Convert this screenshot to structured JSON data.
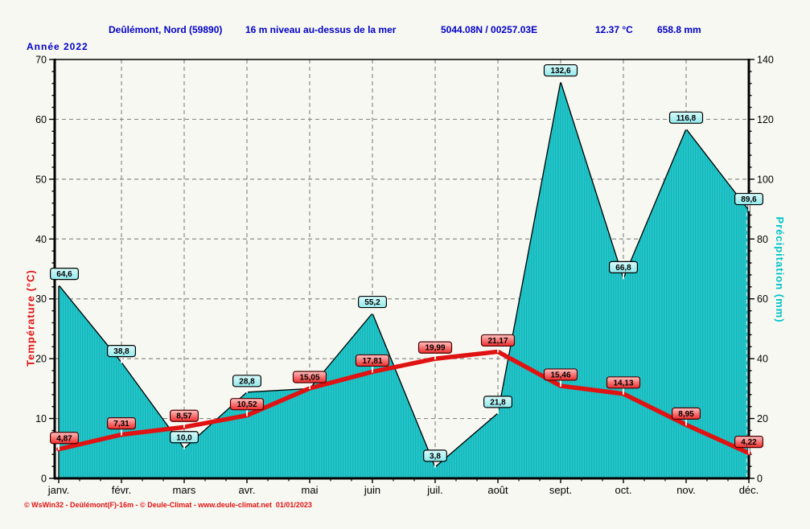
{
  "header": {
    "station": "Deûlémont, Nord (59890)",
    "elevation": "16 m niveau au-dessus de la mer",
    "coordinates": "5044.08N / 00257.03E",
    "mean_temperature": "12.37 °C",
    "total_precipitation": "658.8 mm"
  },
  "year_label": "Année  2022",
  "footer_credit": "© WsWin32 - Deûlémont(F)-16m - © Deule-Climat - www.deule-climat.net  01/01/2023",
  "colors": {
    "header_text": "#0000c8",
    "temperature_line": "#e01212",
    "temperature_label_fill_top": "#ffc2c2",
    "temperature_label_fill_bottom": "#ee2a2a",
    "precipitation_area": "#26c7ca",
    "precipitation_label_fill": "#b2f0f2",
    "grid": "#8a8a8a",
    "axis": "#000000",
    "credit_text": "#e01212"
  },
  "chart_data": {
    "type": "area",
    "subtype": "climograph: precipitation area + temperature line",
    "categories": [
      "janv.",
      "févr.",
      "mars",
      "avr.",
      "mai",
      "juin",
      "juil.",
      "août",
      "sept.",
      "oct.",
      "nov.",
      "déc."
    ],
    "series": [
      {
        "name": "Température",
        "type": "line",
        "unit": "°C",
        "axis": "left",
        "color": "#e01212",
        "values": [
          4.87,
          7.31,
          8.57,
          10.52,
          15.05,
          17.81,
          19.99,
          21.17,
          15.46,
          14.13,
          8.95,
          4.22
        ],
        "point_labels": [
          "4,87",
          "7,31",
          "8,57",
          "10,52",
          "15,05",
          "17,81",
          "19,99",
          "21,17",
          "15,46",
          "14,13",
          "8,95",
          "4,22"
        ]
      },
      {
        "name": "Précipitation",
        "type": "area",
        "unit": "mm",
        "axis": "right",
        "color": "#26c7ca",
        "values": [
          64.6,
          38.8,
          10.0,
          28.8,
          30.0,
          55.2,
          3.8,
          21.8,
          132.6,
          66.8,
          116.8,
          89.6
        ],
        "point_labels": [
          "64,6",
          "38,8",
          "10,0",
          "28,8",
          "",
          "55,2",
          "3,8",
          "21,8",
          "132,6",
          "66,8",
          "116,8",
          "89,6"
        ]
      }
    ],
    "left_axis": {
      "title": "Température  (°C)",
      "min": 0,
      "max": 70,
      "major_step": 10,
      "minor_step": 2,
      "tick_labels": [
        "0",
        "10",
        "20",
        "30",
        "40",
        "50",
        "60",
        "70"
      ]
    },
    "right_axis": {
      "title": "Précipitation  (mm)",
      "min": 0,
      "max": 140,
      "major_step": 20,
      "minor_step": 4,
      "tick_labels": [
        "0",
        "20",
        "40",
        "60",
        "80",
        "100",
        "120",
        "140"
      ]
    },
    "grid": "dashed gray, horizontal every 10°C, vertical every month",
    "legend_position": "none"
  }
}
